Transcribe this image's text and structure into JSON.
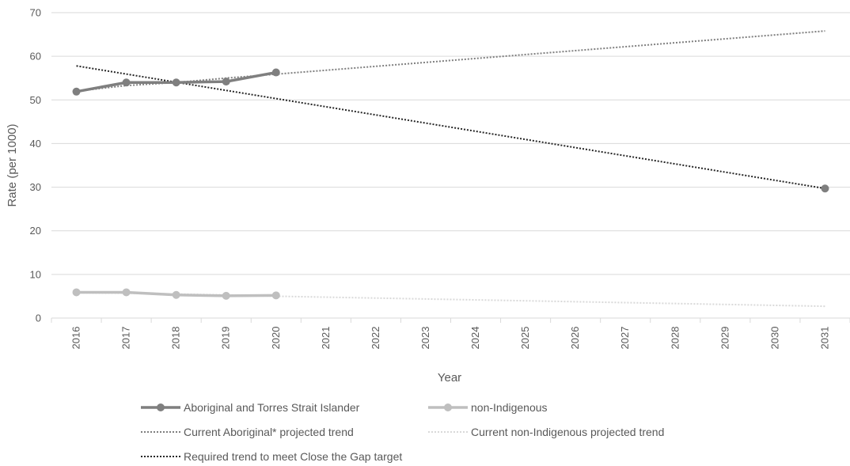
{
  "chart_data": {
    "type": "line",
    "xlabel": "Year",
    "ylabel": "Rate (per 1000)",
    "ylim": [
      0,
      70
    ],
    "yticks": [
      0,
      10,
      20,
      30,
      40,
      50,
      60,
      70
    ],
    "categories": [
      "2016",
      "2017",
      "2018",
      "2019",
      "2020",
      "2021",
      "2022",
      "2023",
      "2024",
      "2025",
      "2026",
      "2027",
      "2028",
      "2029",
      "2030",
      "2031"
    ],
    "grid": "horizontal",
    "legend_position": "bottom",
    "series": [
      {
        "name": "Aboriginal and Torres Strait Islander",
        "style": "solid-markers",
        "color": "#7f7f7f",
        "x": [
          "2016",
          "2017",
          "2018",
          "2019",
          "2020"
        ],
        "values": [
          51.9,
          54.0,
          54.0,
          54.2,
          56.3
        ]
      },
      {
        "name": "non-Indigenous",
        "style": "solid-markers",
        "color": "#bfbfbf",
        "x": [
          "2016",
          "2017",
          "2018",
          "2019",
          "2020"
        ],
        "values": [
          5.9,
          5.9,
          5.3,
          5.1,
          5.2
        ]
      },
      {
        "name": "Current Aboriginal* projected trend",
        "style": "dotted",
        "color": "#7f7f7f",
        "x": [
          "2016",
          "2017",
          "2018",
          "2019",
          "2020",
          "2031"
        ],
        "values": [
          52.0,
          53.3,
          54.0,
          55.0,
          55.9,
          65.8
        ]
      },
      {
        "name": "Current non-Indigenous projected trend",
        "style": "dotted",
        "color": "#d9d9d9",
        "x": [
          "2016",
          "2017",
          "2018",
          "2019",
          "2020",
          "2031"
        ],
        "values": [
          5.8,
          5.7,
          5.5,
          5.3,
          5.0,
          2.7
        ]
      },
      {
        "name": "Required trend to meet Close the Gap target",
        "style": "dotted-endmarker",
        "color": "#262626",
        "x": [
          "2016",
          "2031"
        ],
        "values": [
          57.8,
          29.7
        ]
      }
    ]
  }
}
